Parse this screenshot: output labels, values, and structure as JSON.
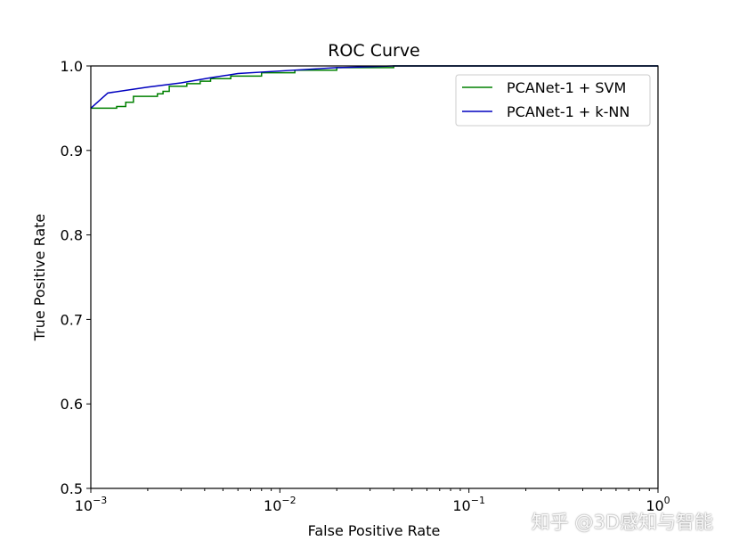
{
  "chart_data": {
    "type": "line",
    "title": "ROC Curve",
    "xlabel": "False Positive Rate",
    "ylabel": "True Positive Rate",
    "xscale": "log",
    "xlim": [
      0.001,
      1
    ],
    "ylim": [
      0.5,
      1.0
    ],
    "x_ticks": [
      {
        "base": "10",
        "exp": "−3",
        "v": 0.001
      },
      {
        "base": "10",
        "exp": "−2",
        "v": 0.01
      },
      {
        "base": "10",
        "exp": "−1",
        "v": 0.1
      },
      {
        "base": "10",
        "exp": "0",
        "v": 1
      }
    ],
    "y_ticks": [
      "0.5",
      "0.6",
      "0.7",
      "0.8",
      "0.9",
      "1.0"
    ],
    "grid": false,
    "legend_position": "top-right",
    "series": [
      {
        "name": "PCANet-1 + SVM",
        "color": "#008000",
        "drawstyle": "steps-post",
        "x": [
          0.001,
          0.00137,
          0.00153,
          0.00168,
          0.00225,
          0.00241,
          0.0026,
          0.00322,
          0.00379,
          0.0043,
          0.0055,
          0.008,
          0.012,
          0.02,
          0.04,
          1
        ],
        "y": [
          0.95,
          0.952,
          0.957,
          0.964,
          0.967,
          0.97,
          0.976,
          0.979,
          0.982,
          0.985,
          0.988,
          0.992,
          0.995,
          0.998,
          1.0,
          1.0
        ]
      },
      {
        "name": "PCANet-1 + k-NN",
        "color": "#0000bf",
        "drawstyle": "linear",
        "x": [
          0.001,
          0.00123,
          0.002,
          0.003,
          0.0043,
          0.006,
          0.01,
          0.02,
          0.04,
          1
        ],
        "y": [
          0.95,
          0.968,
          0.975,
          0.98,
          0.986,
          0.991,
          0.994,
          0.998,
          1.0,
          1.0
        ]
      }
    ]
  },
  "watermark": "知乎 @3D感知与智能"
}
